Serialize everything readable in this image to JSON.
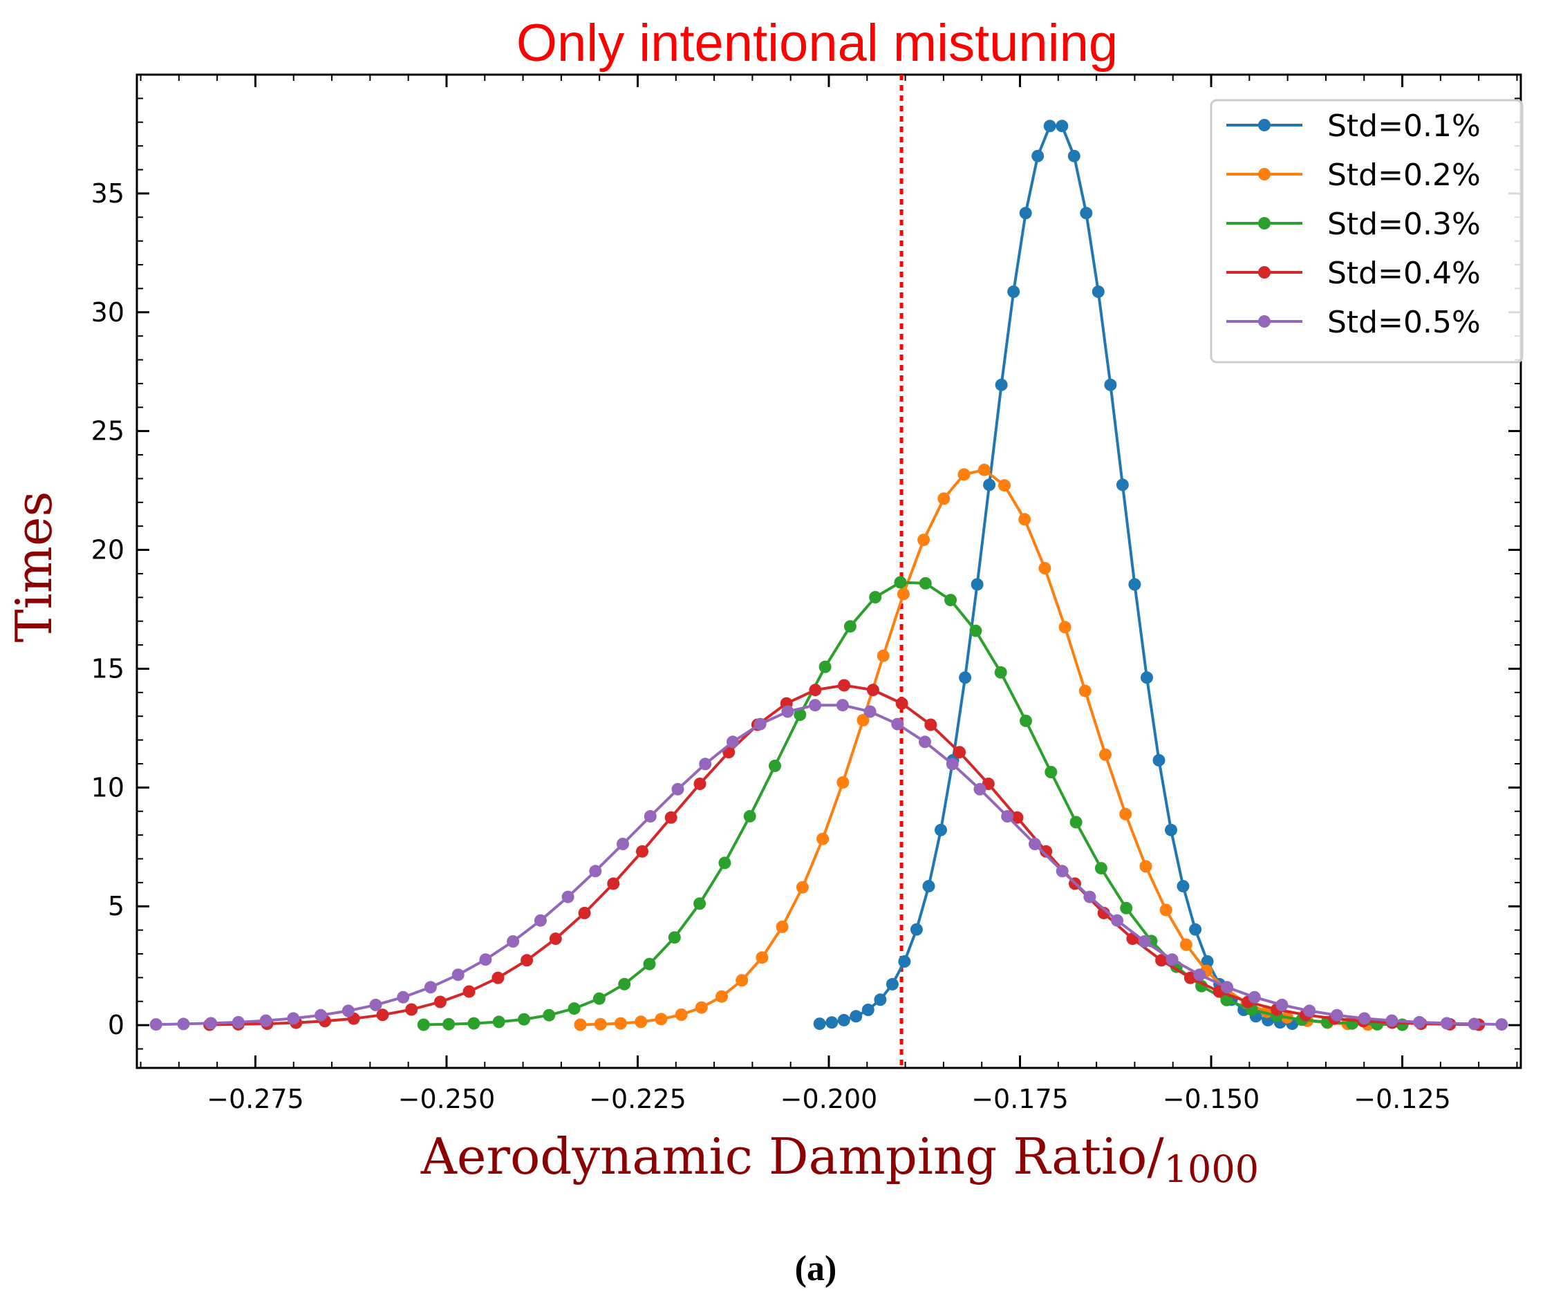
{
  "chart_data": {
    "type": "line",
    "title": "Only intentional mistuning",
    "xlabel": "Aerodynamic Damping Ratio/",
    "xlabel_sub": "1000",
    "ylabel": "Times",
    "subfigure_label": "(a)",
    "xlim": [
      -0.2905,
      -0.1095
    ],
    "ylim": [
      -1.8,
      40
    ],
    "x_ticks": [
      -0.275,
      -0.25,
      -0.225,
      -0.2,
      -0.175,
      -0.15,
      -0.125
    ],
    "x_tick_labels": [
      "−0.275",
      "−0.250",
      "−0.225",
      "−0.200",
      "−0.175",
      "−0.150",
      "−0.125"
    ],
    "y_ticks": [
      0,
      5,
      10,
      15,
      20,
      25,
      30,
      35
    ],
    "y_tick_labels": [
      "0",
      "5",
      "10",
      "15",
      "20",
      "25",
      "30",
      "35"
    ],
    "reference_line": {
      "x": -0.1905,
      "color": "#ff0000",
      "style": "dotted"
    },
    "legend_position": "top-right",
    "grid": false,
    "series": [
      {
        "name": "Std=0.1%",
        "color": "#1f77b4",
        "mean": -0.1703,
        "sigma": 0.0086,
        "peak": 38.0,
        "x_start": -0.2012,
        "x_end": -0.1394,
        "n_points": 40
      },
      {
        "name": "Std=0.2%",
        "color": "#ff7f0e",
        "mean": -0.1804,
        "sigma": 0.0138,
        "peak": 23.4,
        "x_start": -0.2325,
        "x_end": -0.1295,
        "n_points": 40
      },
      {
        "name": "Std=0.3%",
        "color": "#2ca02c",
        "mean": -0.1892,
        "sigma": 0.0172,
        "peak": 18.7,
        "x_start": -0.253,
        "x_end": -0.125,
        "n_points": 40
      },
      {
        "name": "Std=0.4%",
        "color": "#d62728",
        "mean": -0.198,
        "sigma": 0.0228,
        "peak": 14.3,
        "x_start": -0.281,
        "x_end": -0.115,
        "n_points": 45
      },
      {
        "name": "Std=0.5%",
        "color": "#9467bd",
        "mean": -0.2,
        "sigma": 0.0252,
        "peak": 13.5,
        "x_start": -0.288,
        "x_end": -0.112,
        "n_points": 50
      }
    ]
  }
}
